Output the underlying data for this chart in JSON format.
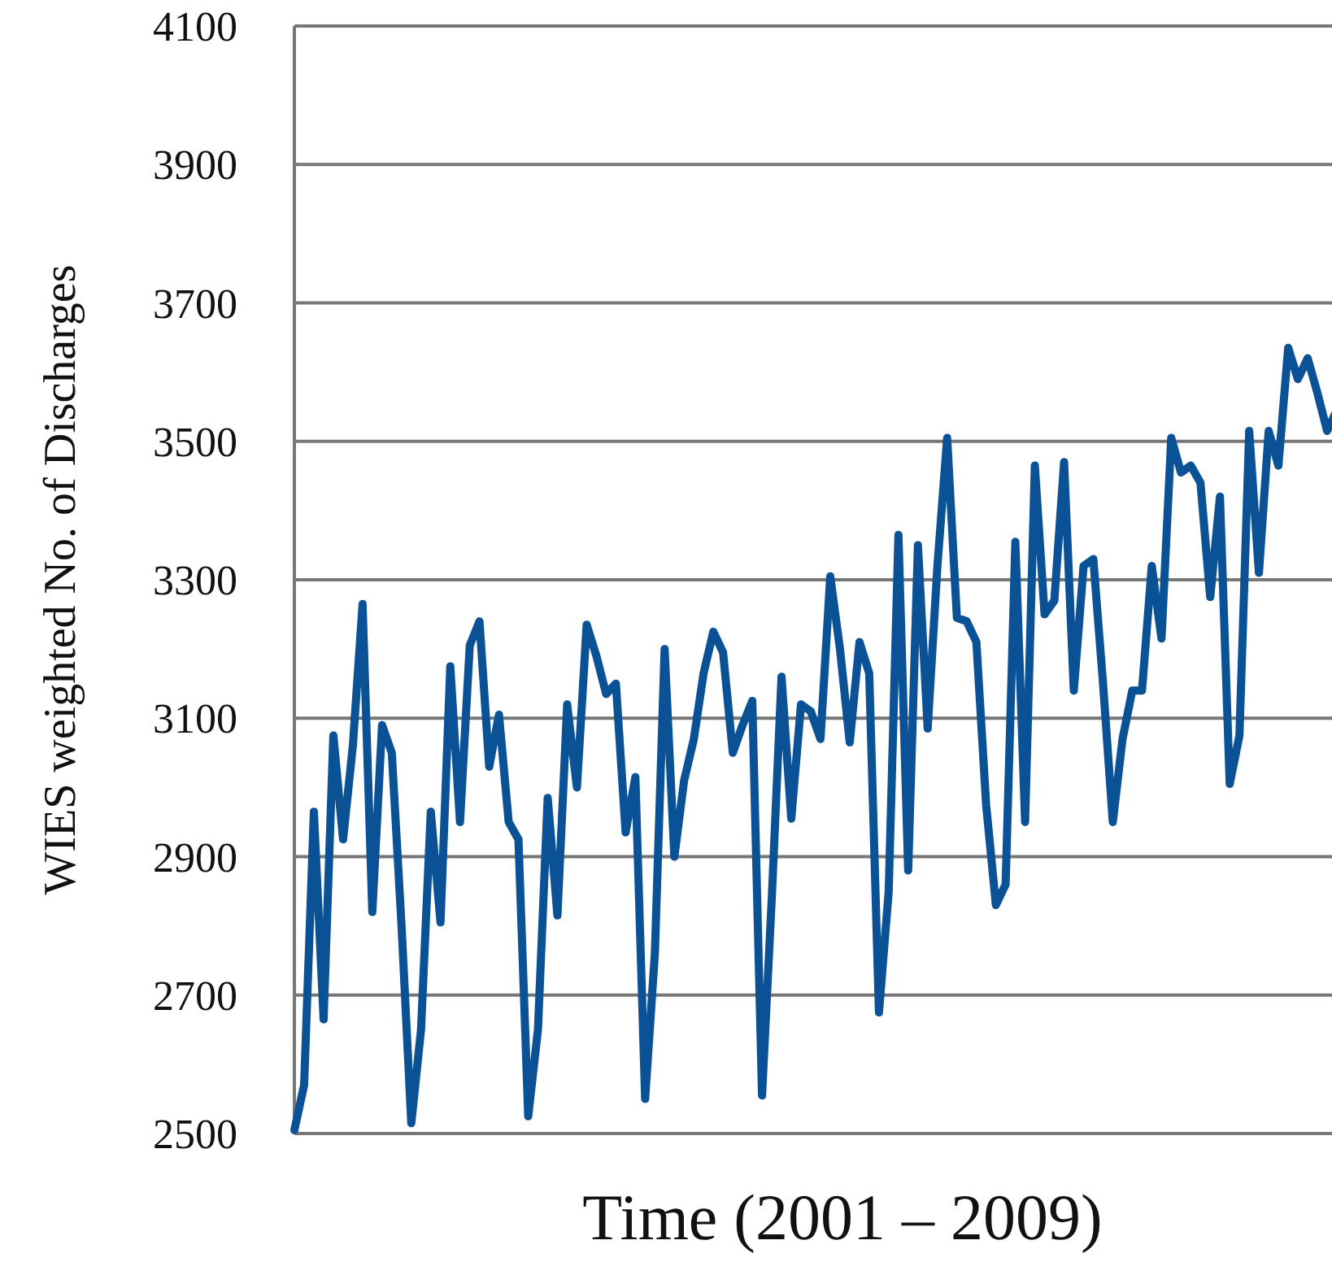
{
  "chart_data": {
    "type": "line",
    "xlabel": "Time (2001 – 2009)",
    "ylabel": "WIES weighted No. of Discharges",
    "categories": [
      null,
      null,
      null,
      null,
      null,
      null,
      null,
      null,
      null,
      null,
      null,
      null,
      null,
      null,
      null,
      null,
      null,
      null,
      null,
      null,
      null,
      null,
      null,
      null,
      null,
      null,
      null,
      null,
      null,
      null,
      null,
      null,
      null,
      null,
      null,
      null,
      null,
      null,
      null,
      null,
      null,
      null,
      null,
      null,
      null,
      null,
      null,
      null,
      null,
      null,
      null,
      null,
      null,
      null,
      null,
      null,
      null,
      null,
      null,
      null,
      null,
      null,
      null,
      null,
      null,
      null,
      null,
      null,
      null,
      null,
      null,
      null,
      null,
      null,
      null,
      null,
      null,
      null,
      null,
      null,
      null,
      null,
      null,
      null,
      null,
      null,
      null,
      null,
      null,
      null,
      null,
      null,
      null,
      null,
      null,
      null,
      null,
      null,
      null,
      null,
      null,
      null,
      null,
      null,
      null,
      null,
      null,
      null
    ],
    "series": [
      {
        "color": "#0a5196",
        "values": [
          2505,
          2570,
          2965,
          2665,
          3075,
          2925,
          3060,
          3265,
          2820,
          3090,
          3050,
          2800,
          2515,
          2650,
          2965,
          2805,
          3175,
          2950,
          3205,
          3240,
          3030,
          3105,
          2950,
          2925,
          2525,
          2650,
          2985,
          2815,
          3120,
          3000,
          3235,
          3190,
          3135,
          3150,
          2935,
          3015,
          2550,
          2760,
          3200,
          2900,
          3010,
          3070,
          3165,
          3225,
          3195,
          3050,
          3090,
          3125,
          2555,
          2840,
          3160,
          2955,
          3120,
          3110,
          3070,
          3305,
          3200,
          3065,
          3210,
          3165,
          2675,
          2850,
          3365,
          2880,
          3350,
          3085,
          3320,
          3505,
          3245,
          3240,
          3210,
          2975,
          2830,
          2860,
          3355,
          2950,
          3465,
          3250,
          3270,
          3470,
          3140,
          3320,
          3330,
          3150,
          2950,
          3070,
          3140,
          3140,
          3320,
          3215,
          3505,
          3455,
          3465,
          3440,
          3275,
          3420,
          3005,
          3075,
          3515,
          3310,
          3515,
          3465,
          3635,
          3590,
          3620,
          3570,
          3515,
          3545
        ]
      }
    ],
    "ylim": [
      2500,
      4100
    ],
    "yticks": [
      2500,
      2700,
      2900,
      3100,
      3300,
      3500,
      3700,
      3900,
      4100
    ],
    "grid": "y",
    "marker": "none",
    "line_style": "solid",
    "tick_labels": "y"
  }
}
